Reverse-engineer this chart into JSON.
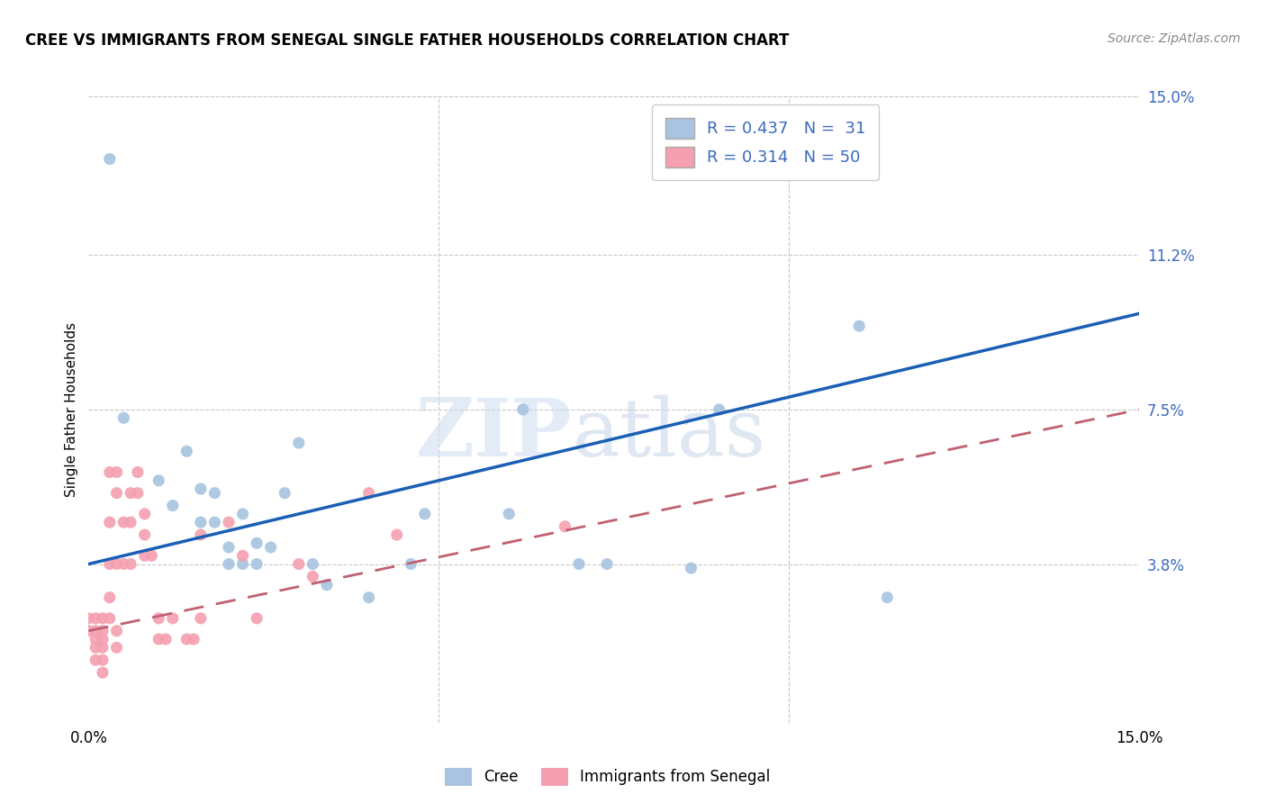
{
  "title": "CREE VS IMMIGRANTS FROM SENEGAL SINGLE FATHER HOUSEHOLDS CORRELATION CHART",
  "source": "Source: ZipAtlas.com",
  "ylabel": "Single Father Households",
  "xlim": [
    0.0,
    0.15
  ],
  "ylim": [
    0.0,
    0.15
  ],
  "ytick_labels": [
    "3.8%",
    "7.5%",
    "11.2%",
    "15.0%"
  ],
  "ytick_positions": [
    0.038,
    0.075,
    0.112,
    0.15
  ],
  "grid_color": "#c8c8c8",
  "background_color": "#ffffff",
  "watermark_zip": "ZIP",
  "watermark_atlas": "atlas",
  "legend_R_cree": "0.437",
  "legend_N_cree": "31",
  "legend_R_senegal": "0.314",
  "legend_N_senegal": "50",
  "cree_color": "#a8c4e0",
  "senegal_color": "#f4a0b0",
  "cree_line_color": "#1a5fb4",
  "senegal_line_color": "#c06070",
  "cree_scatter": [
    [
      0.003,
      0.135
    ],
    [
      0.005,
      0.073
    ],
    [
      0.01,
      0.058
    ],
    [
      0.012,
      0.052
    ],
    [
      0.014,
      0.065
    ],
    [
      0.016,
      0.056
    ],
    [
      0.016,
      0.048
    ],
    [
      0.018,
      0.055
    ],
    [
      0.018,
      0.048
    ],
    [
      0.02,
      0.042
    ],
    [
      0.02,
      0.038
    ],
    [
      0.022,
      0.05
    ],
    [
      0.022,
      0.038
    ],
    [
      0.024,
      0.043
    ],
    [
      0.024,
      0.038
    ],
    [
      0.026,
      0.042
    ],
    [
      0.028,
      0.055
    ],
    [
      0.03,
      0.067
    ],
    [
      0.032,
      0.038
    ],
    [
      0.034,
      0.033
    ],
    [
      0.04,
      0.03
    ],
    [
      0.046,
      0.038
    ],
    [
      0.048,
      0.05
    ],
    [
      0.06,
      0.05
    ],
    [
      0.062,
      0.075
    ],
    [
      0.07,
      0.038
    ],
    [
      0.074,
      0.038
    ],
    [
      0.086,
      0.037
    ],
    [
      0.09,
      0.075
    ],
    [
      0.11,
      0.095
    ],
    [
      0.114,
      0.03
    ]
  ],
  "senegal_scatter": [
    [
      0.0,
      0.025
    ],
    [
      0.0,
      0.022
    ],
    [
      0.001,
      0.025
    ],
    [
      0.001,
      0.022
    ],
    [
      0.001,
      0.02
    ],
    [
      0.001,
      0.018
    ],
    [
      0.001,
      0.015
    ],
    [
      0.002,
      0.025
    ],
    [
      0.002,
      0.022
    ],
    [
      0.002,
      0.02
    ],
    [
      0.002,
      0.018
    ],
    [
      0.002,
      0.015
    ],
    [
      0.002,
      0.012
    ],
    [
      0.003,
      0.06
    ],
    [
      0.003,
      0.048
    ],
    [
      0.003,
      0.038
    ],
    [
      0.003,
      0.03
    ],
    [
      0.003,
      0.025
    ],
    [
      0.004,
      0.06
    ],
    [
      0.004,
      0.055
    ],
    [
      0.004,
      0.038
    ],
    [
      0.004,
      0.022
    ],
    [
      0.004,
      0.018
    ],
    [
      0.005,
      0.048
    ],
    [
      0.005,
      0.038
    ],
    [
      0.006,
      0.055
    ],
    [
      0.006,
      0.048
    ],
    [
      0.006,
      0.038
    ],
    [
      0.007,
      0.06
    ],
    [
      0.007,
      0.055
    ],
    [
      0.008,
      0.05
    ],
    [
      0.008,
      0.045
    ],
    [
      0.008,
      0.04
    ],
    [
      0.009,
      0.04
    ],
    [
      0.01,
      0.025
    ],
    [
      0.01,
      0.02
    ],
    [
      0.011,
      0.02
    ],
    [
      0.012,
      0.025
    ],
    [
      0.014,
      0.02
    ],
    [
      0.015,
      0.02
    ],
    [
      0.016,
      0.045
    ],
    [
      0.016,
      0.025
    ],
    [
      0.02,
      0.048
    ],
    [
      0.022,
      0.04
    ],
    [
      0.024,
      0.025
    ],
    [
      0.03,
      0.038
    ],
    [
      0.032,
      0.035
    ],
    [
      0.04,
      0.055
    ],
    [
      0.044,
      0.045
    ],
    [
      0.068,
      0.047
    ]
  ],
  "cree_trend": [
    0.0,
    0.15,
    0.038,
    0.098
  ],
  "senegal_trend": [
    0.0,
    0.15,
    0.022,
    0.075
  ]
}
